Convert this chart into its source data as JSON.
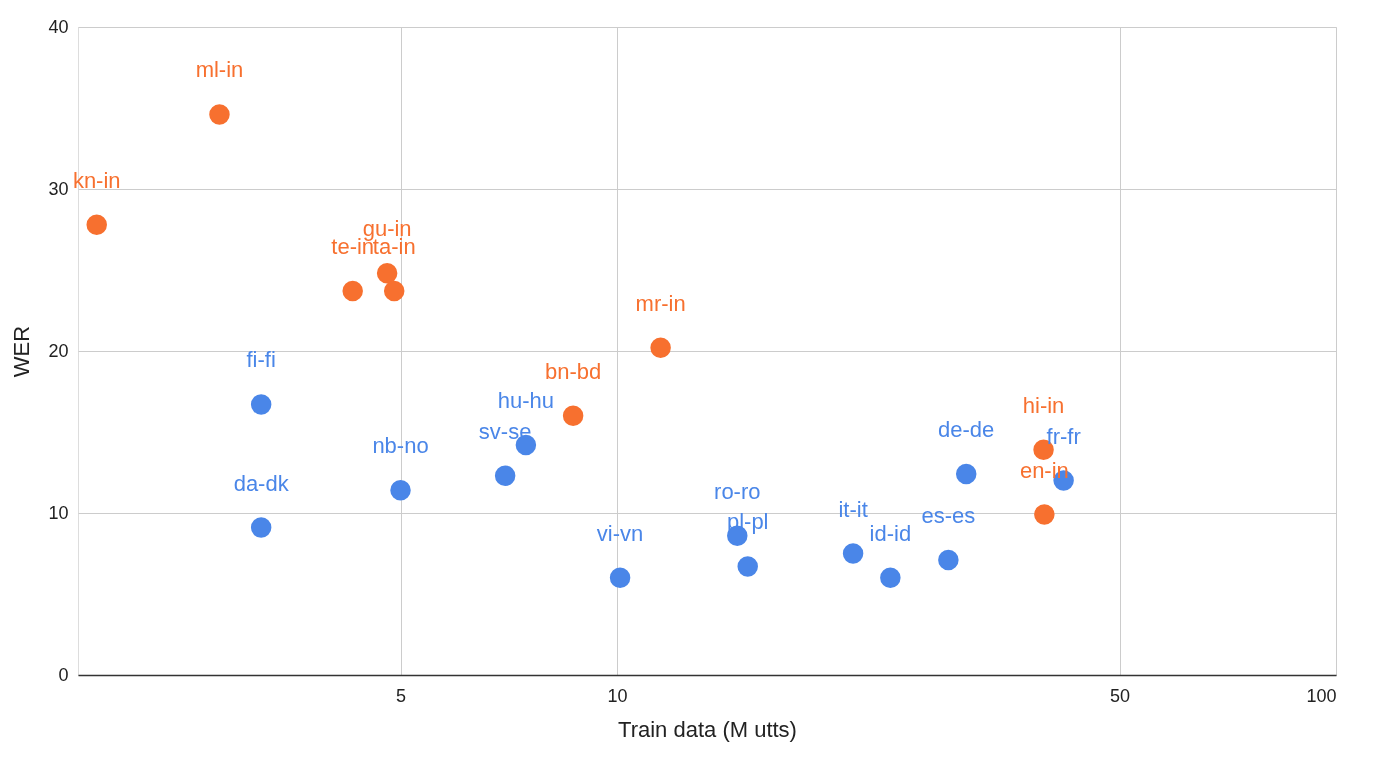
{
  "chart_data": {
    "type": "scatter",
    "xlabel": "Train data (M utts)",
    "ylabel": "WER",
    "log": "x",
    "xlim": [
      1.78,
      100
    ],
    "xticks": [
      5,
      10,
      50,
      100
    ],
    "ylim": [
      0,
      40
    ],
    "yticks": [
      0,
      10,
      20,
      30,
      40
    ],
    "grid": true,
    "marker": "circle",
    "legend": false,
    "series": [
      {
        "color": "#f7702f",
        "x": [
          1.89,
          2.8,
          4.29,
          4.79,
          4.9,
          8.69,
          11.5,
          39.2,
          39.3
        ],
        "values": [
          27.8,
          34.6,
          23.7,
          24.8,
          23.7,
          16.0,
          20.2,
          13.9,
          9.9
        ]
      },
      {
        "color": "#4a86e8",
        "x": [
          3.2,
          3.2,
          5.0,
          6.99,
          7.47,
          10.1,
          14.7,
          15.2,
          21.3,
          24.0,
          28.9,
          30.6,
          41.8
        ],
        "values": [
          16.7,
          9.1,
          11.4,
          12.3,
          14.2,
          6.0,
          8.6,
          6.7,
          7.5,
          6.0,
          7.1,
          12.4,
          12.0
        ]
      }
    ],
    "annotations": [
      {
        "text": "kn-in",
        "x": 1.89,
        "y": 27.8
      },
      {
        "text": "ml-in",
        "x": 2.8,
        "y": 34.6
      },
      {
        "text": "te-in",
        "x": 4.29,
        "y": 23.7
      },
      {
        "text": "gu-in",
        "x": 4.79,
        "y": 24.8
      },
      {
        "text": "ta-in",
        "x": 4.9,
        "y": 23.7
      },
      {
        "text": "bn-bd",
        "x": 8.69,
        "y": 16.0
      },
      {
        "text": "mr-in",
        "x": 11.5,
        "y": 20.2
      },
      {
        "text": "hi-in",
        "x": 39.2,
        "y": 13.9
      },
      {
        "text": "en-in",
        "x": 39.3,
        "y": 9.9
      },
      {
        "text": "fi-fi",
        "x": 3.2,
        "y": 16.7
      },
      {
        "text": "da-dk",
        "x": 3.2,
        "y": 9.1
      },
      {
        "text": "nb-no",
        "x": 5.0,
        "y": 11.4
      },
      {
        "text": "sv-se",
        "x": 6.99,
        "y": 12.3
      },
      {
        "text": "hu-hu",
        "x": 7.47,
        "y": 14.2
      },
      {
        "text": "vi-vn",
        "x": 10.1,
        "y": 6.0
      },
      {
        "text": "ro-ro",
        "x": 14.7,
        "y": 8.6
      },
      {
        "text": "pl-pl",
        "x": 15.2,
        "y": 6.7
      },
      {
        "text": "it-it",
        "x": 21.3,
        "y": 7.5
      },
      {
        "text": "id-id",
        "x": 24.0,
        "y": 6.0
      },
      {
        "text": "es-es",
        "x": 28.9,
        "y": 7.1
      },
      {
        "text": "de-de",
        "x": 30.6,
        "y": 12.4
      },
      {
        "text": "fr-fr",
        "x": 41.8,
        "y": 12.0
      }
    ]
  }
}
